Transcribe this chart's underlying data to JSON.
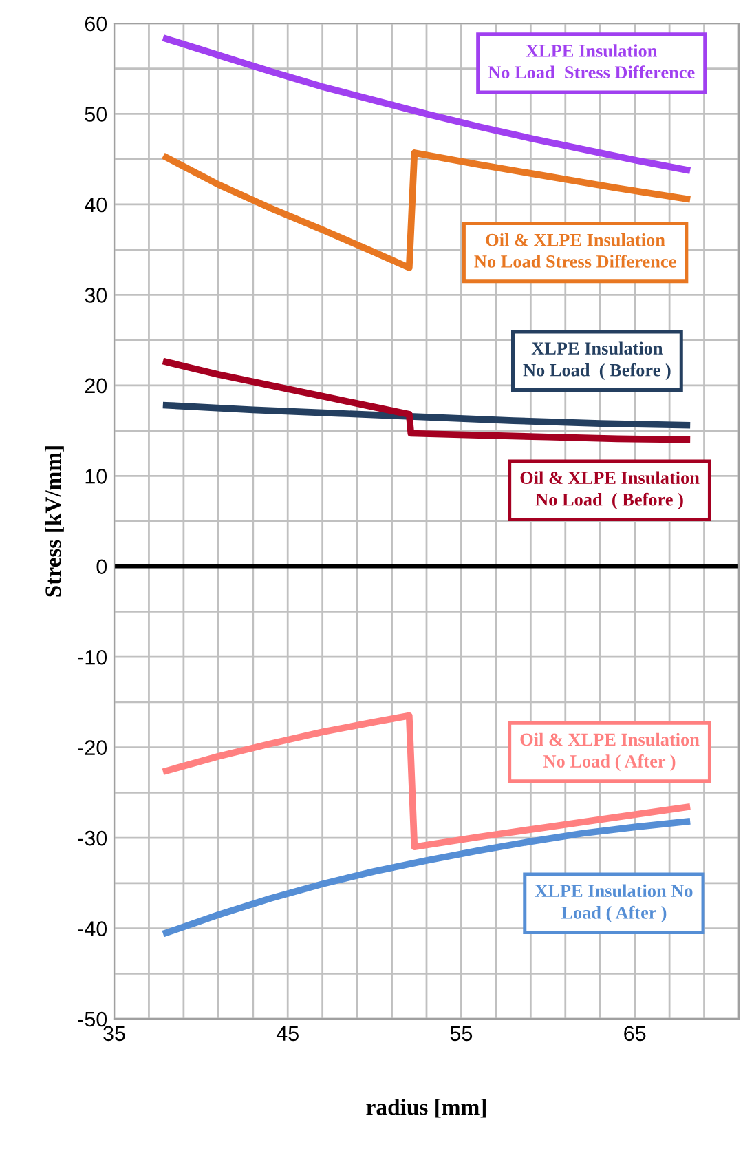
{
  "chart_data": {
    "type": "line",
    "xlabel": "radius [mm]",
    "ylabel": "Stress [kV/mm]",
    "xlim": [
      35,
      71
    ],
    "ylim": [
      -50,
      60
    ],
    "xticks": [
      35,
      {
        "value": 37,
        "label": null
      },
      {
        "value": 39,
        "label": null
      },
      {
        "value": 41,
        "label": null
      },
      {
        "value": 43,
        "label": null
      },
      45,
      {
        "value": 47,
        "label": null
      },
      {
        "value": 49,
        "label": null
      },
      {
        "value": 51,
        "label": null
      },
      {
        "value": 53,
        "label": null
      },
      55,
      {
        "value": 57,
        "label": null
      },
      {
        "value": 59,
        "label": null
      },
      {
        "value": 61,
        "label": null
      },
      {
        "value": 63,
        "label": null
      },
      65,
      {
        "value": 67,
        "label": null
      },
      {
        "value": 69,
        "label": null
      },
      {
        "value": 71,
        "label": null
      }
    ],
    "yticks": [
      -50,
      {
        "value": -45,
        "label": null
      },
      -40,
      {
        "value": -35,
        "label": null
      },
      -30,
      {
        "value": -25,
        "label": null
      },
      -20,
      {
        "value": -15,
        "label": null
      },
      -10,
      {
        "value": -5,
        "label": null
      },
      0,
      {
        "value": 5,
        "label": null
      },
      10,
      {
        "value": 15,
        "label": null
      },
      20,
      {
        "value": 25,
        "label": null
      },
      30,
      {
        "value": 35,
        "label": null
      },
      40,
      {
        "value": 45,
        "label": null
      },
      50,
      {
        "value": 55,
        "label": null
      },
      60
    ],
    "grid": true,
    "legend": false,
    "marker": "none",
    "line_style": "solid",
    "ref_lines": [
      {
        "axis": "y",
        "value": 0,
        "color": "#000000"
      }
    ],
    "series": [
      {
        "name": "XLPE Insulation\nNo Load  Stress Difference",
        "color": "#a040f0",
        "x": [
          38,
          41,
          44,
          47,
          50,
          53,
          56,
          59,
          62,
          65,
          68
        ],
        "values": [
          58.3,
          56.5,
          54.7,
          53.0,
          51.5,
          50.0,
          48.6,
          47.3,
          46.1,
          44.9,
          43.8
        ]
      },
      {
        "name": "Oil & XLPE Insulation\nNo Load Stress Difference",
        "color": "#e87722",
        "x": [
          38,
          41,
          44,
          47,
          50,
          52,
          52.3,
          56,
          60,
          64,
          68
        ],
        "values": [
          45.2,
          42.2,
          39.6,
          37.2,
          34.7,
          33.0,
          45.7,
          44.4,
          43.1,
          41.8,
          40.6
        ]
      },
      {
        "name": "XLPE Insulation\nNo Load  ( Before )",
        "color": "#243f60",
        "x": [
          38,
          43,
          48,
          53,
          58,
          63,
          68
        ],
        "values": [
          17.8,
          17.3,
          16.9,
          16.5,
          16.1,
          15.8,
          15.6
        ]
      },
      {
        "name": "Oil & XLPE Insulation\nNo Load  ( Before )",
        "color": "#a50021",
        "x": [
          38,
          41,
          44,
          47,
          50,
          52,
          52.1,
          56,
          60,
          64,
          68
        ],
        "values": [
          22.6,
          21.2,
          20.0,
          18.8,
          17.6,
          16.8,
          14.7,
          14.5,
          14.3,
          14.1,
          14.0
        ]
      },
      {
        "name": "Oil & XLPE Insulation\nNo Load ( After )",
        "color": "#ff8080",
        "x": [
          38,
          41,
          44,
          47,
          50,
          52,
          52.3,
          56,
          60,
          64,
          68
        ],
        "values": [
          -22.6,
          -21.0,
          -19.6,
          -18.3,
          -17.2,
          -16.5,
          -31.0,
          -29.9,
          -28.8,
          -27.7,
          -26.6
        ]
      },
      {
        "name": "XLPE Insulation No\nLoad ( After )",
        "color": "#558ed5",
        "x": [
          38,
          41,
          44,
          47,
          50,
          53,
          56,
          59,
          62,
          65,
          68
        ],
        "values": [
          -40.5,
          -38.5,
          -36.7,
          -35.1,
          -33.7,
          -32.5,
          -31.4,
          -30.4,
          -29.5,
          -28.8,
          -28.2
        ]
      }
    ]
  }
}
